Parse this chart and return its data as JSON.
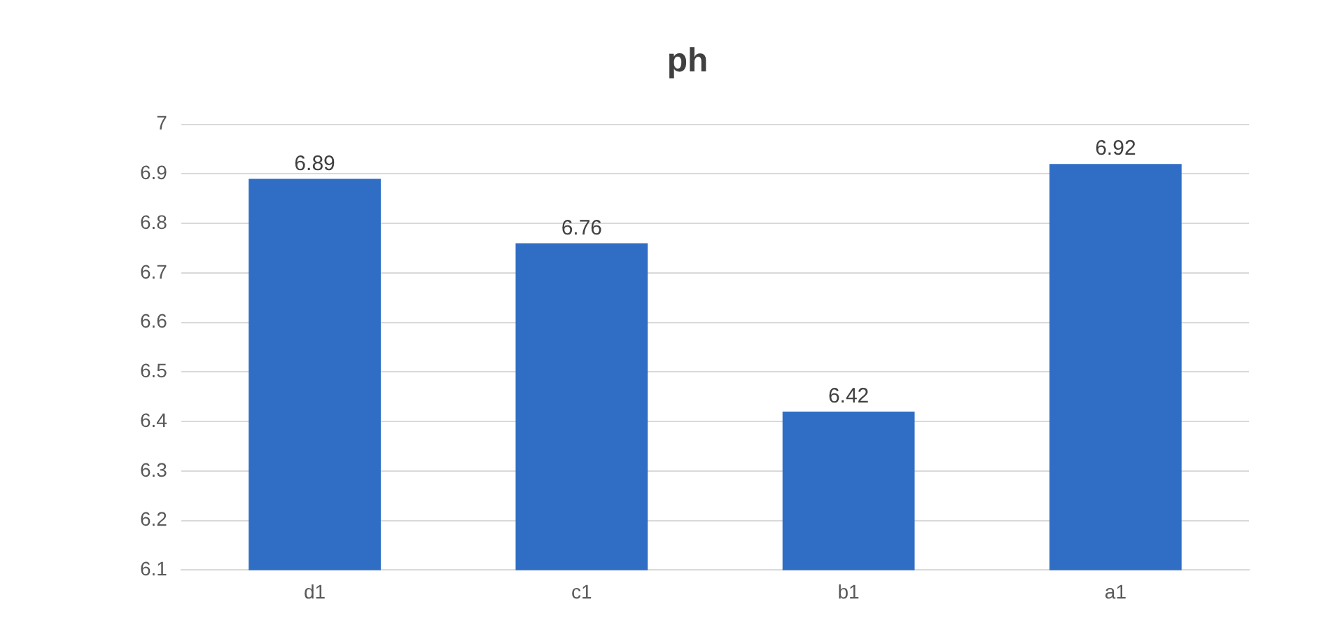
{
  "chart_data": {
    "type": "bar",
    "title": "ph",
    "categories": [
      "d1",
      "c1",
      "b1",
      "a1"
    ],
    "values": [
      6.89,
      6.76,
      6.42,
      6.92
    ],
    "color": "#2f6ec4",
    "ylim": [
      6.1,
      7
    ],
    "yticks": [
      6.1,
      6.2,
      6.3,
      6.4,
      6.5,
      6.6,
      6.7,
      6.8,
      6.9,
      7
    ],
    "grid": "y",
    "data_labels": true
  }
}
